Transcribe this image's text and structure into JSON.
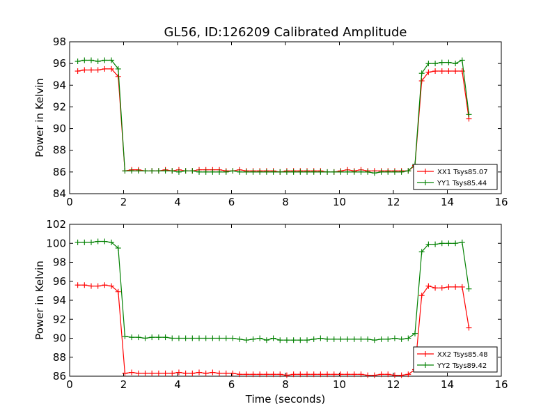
{
  "colors": {
    "red": "#ff0000",
    "green": "#008000"
  },
  "chart_data": [
    {
      "type": "line",
      "title": "GL56, ID:126209 Calibrated Amplitude",
      "xlabel": "",
      "ylabel": "Power in Kelvin",
      "xlim": [
        0,
        16
      ],
      "ylim": [
        84,
        98
      ],
      "xticks": [
        "0",
        "2",
        "4",
        "6",
        "8",
        "10",
        "12",
        "14",
        "16"
      ],
      "yticks": [
        "84",
        "86",
        "88",
        "90",
        "92",
        "94",
        "96",
        "98"
      ],
      "legend_position": "lower-right",
      "grid": false,
      "x": [
        0.3,
        0.55,
        0.8,
        1.05,
        1.3,
        1.55,
        1.8,
        2.05,
        2.3,
        2.55,
        2.8,
        3.05,
        3.3,
        3.55,
        3.8,
        4.05,
        4.3,
        4.55,
        4.8,
        5.05,
        5.3,
        5.55,
        5.8,
        6.05,
        6.3,
        6.55,
        6.8,
        7.05,
        7.3,
        7.55,
        7.8,
        8.05,
        8.3,
        8.55,
        8.8,
        9.05,
        9.3,
        9.55,
        9.8,
        10.05,
        10.3,
        10.55,
        10.8,
        11.05,
        11.3,
        11.55,
        11.8,
        12.05,
        12.3,
        12.55,
        12.8,
        13.05,
        13.3,
        13.55,
        13.8,
        14.05,
        14.3,
        14.55,
        14.8
      ],
      "series": [
        {
          "name": "XX1 Tsys85.07",
          "color": "#ff0000",
          "values": [
            95.3,
            95.4,
            95.4,
            95.4,
            95.5,
            95.5,
            94.8,
            86.1,
            86.2,
            86.2,
            86.1,
            86.1,
            86.1,
            86.2,
            86.1,
            86.2,
            86.1,
            86.1,
            86.2,
            86.2,
            86.2,
            86.2,
            86.1,
            86.1,
            86.2,
            86.1,
            86.1,
            86.1,
            86.1,
            86.1,
            86.0,
            86.1,
            86.1,
            86.1,
            86.1,
            86.1,
            86.1,
            86.0,
            86.0,
            86.1,
            86.2,
            86.1,
            86.2,
            86.1,
            86.1,
            86.1,
            86.1,
            86.1,
            86.1,
            86.1,
            86.6,
            94.4,
            95.2,
            95.3,
            95.3,
            95.3,
            95.3,
            95.3,
            90.9
          ]
        },
        {
          "name": "YY1 Tsys85.44",
          "color": "#008000",
          "values": [
            96.2,
            96.3,
            96.3,
            96.2,
            96.3,
            96.3,
            95.5,
            86.1,
            86.1,
            86.1,
            86.1,
            86.1,
            86.1,
            86.1,
            86.1,
            86.0,
            86.1,
            86.1,
            86.0,
            86.0,
            86.0,
            86.0,
            86.0,
            86.1,
            86.0,
            86.0,
            86.0,
            86.0,
            86.0,
            86.0,
            86.0,
            86.0,
            86.0,
            86.0,
            86.0,
            86.0,
            86.0,
            86.0,
            86.0,
            86.0,
            86.0,
            86.0,
            86.0,
            86.0,
            85.9,
            86.0,
            86.0,
            86.0,
            86.0,
            86.1,
            86.7,
            95.1,
            96.0,
            96.0,
            96.1,
            96.1,
            96.0,
            96.3,
            91.3
          ]
        }
      ]
    },
    {
      "type": "line",
      "title": "",
      "xlabel": "Time (seconds)",
      "ylabel": "Power in Kelvin",
      "xlim": [
        0,
        16
      ],
      "ylim": [
        86,
        102
      ],
      "xticks": [
        "0",
        "2",
        "4",
        "6",
        "8",
        "10",
        "12",
        "14",
        "16"
      ],
      "yticks": [
        "86",
        "88",
        "90",
        "92",
        "94",
        "96",
        "98",
        "100",
        "102"
      ],
      "legend_position": "lower-right",
      "grid": false,
      "x": [
        0.3,
        0.55,
        0.8,
        1.05,
        1.3,
        1.55,
        1.8,
        2.05,
        2.3,
        2.55,
        2.8,
        3.05,
        3.3,
        3.55,
        3.8,
        4.05,
        4.3,
        4.55,
        4.8,
        5.05,
        5.3,
        5.55,
        5.8,
        6.05,
        6.3,
        6.55,
        6.8,
        7.05,
        7.3,
        7.55,
        7.8,
        8.05,
        8.3,
        8.55,
        8.8,
        9.05,
        9.3,
        9.55,
        9.8,
        10.05,
        10.3,
        10.55,
        10.8,
        11.05,
        11.3,
        11.55,
        11.8,
        12.05,
        12.3,
        12.55,
        12.8,
        13.05,
        13.3,
        13.55,
        13.8,
        14.05,
        14.3,
        14.55,
        14.8
      ],
      "series": [
        {
          "name": "XX2 Tsys85.48",
          "color": "#ff0000",
          "values": [
            95.6,
            95.6,
            95.5,
            95.5,
            95.6,
            95.5,
            94.9,
            86.3,
            86.4,
            86.3,
            86.3,
            86.3,
            86.3,
            86.3,
            86.3,
            86.4,
            86.3,
            86.3,
            86.4,
            86.3,
            86.4,
            86.3,
            86.3,
            86.3,
            86.2,
            86.2,
            86.2,
            86.2,
            86.2,
            86.2,
            86.2,
            86.1,
            86.2,
            86.2,
            86.2,
            86.2,
            86.2,
            86.2,
            86.2,
            86.2,
            86.2,
            86.2,
            86.2,
            86.1,
            86.1,
            86.2,
            86.2,
            86.1,
            86.1,
            86.2,
            86.7,
            94.5,
            95.5,
            95.3,
            95.3,
            95.4,
            95.4,
            95.4,
            91.1
          ]
        },
        {
          "name": "YY2 Tsys89.42",
          "color": "#008000",
          "values": [
            100.1,
            100.1,
            100.1,
            100.2,
            100.2,
            100.1,
            99.5,
            90.2,
            90.1,
            90.1,
            90.0,
            90.1,
            90.1,
            90.1,
            90.0,
            90.0,
            90.0,
            90.0,
            90.0,
            90.0,
            90.0,
            90.0,
            90.0,
            90.0,
            89.9,
            89.8,
            89.9,
            90.0,
            89.8,
            90.0,
            89.8,
            89.8,
            89.8,
            89.8,
            89.8,
            89.9,
            90.0,
            89.9,
            89.9,
            89.9,
            89.9,
            89.9,
            89.9,
            89.9,
            89.8,
            89.9,
            89.9,
            90.0,
            89.9,
            90.0,
            90.5,
            99.1,
            99.9,
            99.9,
            100.0,
            100.0,
            100.0,
            100.1,
            95.2
          ]
        }
      ]
    }
  ]
}
